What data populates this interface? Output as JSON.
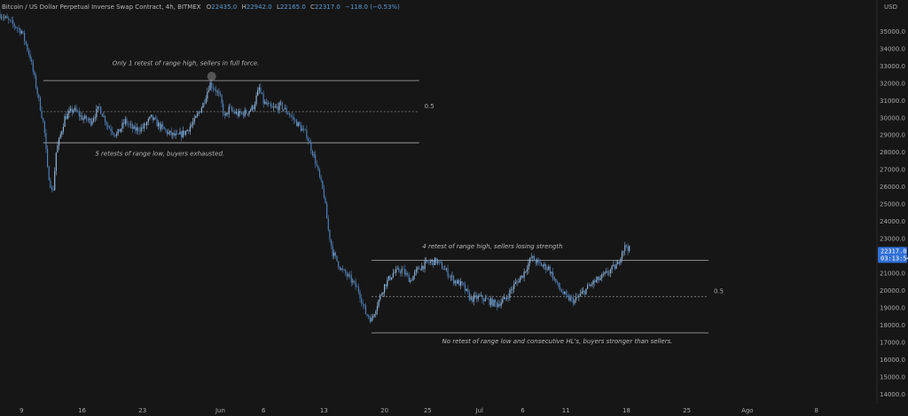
{
  "header": {
    "symbol": "Bitcoin / US Dollar Perpetual Inverse Swap Contract, 4h, BITMEX",
    "o_label": "O",
    "o_value": "22435.0",
    "h_label": "H",
    "h_value": "22942.0",
    "l_label": "L",
    "l_value": "22165.0",
    "c_label": "C",
    "c_value": "22317.0",
    "change": "−118.0 (−0.53%)"
  },
  "price_badge": {
    "price": "22317.0",
    "countdown": "03:13:54",
    "color": "#2f6fd6"
  },
  "colors": {
    "background": "#161616",
    "candle": "#8fb4d9",
    "candle_dark": "#4f7fb8",
    "level_line": "#9a9a9a",
    "text": "#b8b8b8"
  },
  "chart_data": {
    "type": "candlestick",
    "currency": "USD",
    "y_ticks": [
      "35000.0",
      "34000.0",
      "33000.0",
      "32000.0",
      "31000.0",
      "30000.0",
      "29000.0",
      "28000.0",
      "27000.0",
      "26000.0",
      "25000.0",
      "24000.0",
      "23000.0",
      "22000.0",
      "21000.0",
      "20000.0",
      "19000.0",
      "18000.0",
      "17000.0",
      "16000.0",
      "15000.0",
      "14000.0"
    ],
    "ylim": [
      13450,
      36100
    ],
    "x_ticks": [
      "9",
      "16",
      "23",
      "Jun",
      "6",
      "13",
      "20",
      "25",
      "Jul",
      "6",
      "11",
      "18",
      "25",
      "Ago",
      "8"
    ],
    "x_tick_days": [
      9,
      16,
      23,
      32,
      37,
      44,
      51,
      56,
      62,
      67,
      72,
      79,
      86,
      93,
      101
    ],
    "x_range_days": [
      6.5,
      108
    ],
    "price_path": [
      [
        6.5,
        36000
      ],
      [
        9,
        35000
      ],
      [
        10,
        33500
      ],
      [
        11,
        31000
      ],
      [
        11.6,
        29500
      ],
      [
        12,
        27000
      ],
      [
        12.6,
        25500
      ],
      [
        13,
        28000
      ],
      [
        14,
        30000
      ],
      [
        15,
        30500
      ],
      [
        16,
        30000
      ],
      [
        17,
        29800
      ],
      [
        18,
        30600
      ],
      [
        19,
        29500
      ],
      [
        20,
        29000
      ],
      [
        21,
        29800
      ],
      [
        22,
        29300
      ],
      [
        23,
        29400
      ],
      [
        24,
        30000
      ],
      [
        25,
        29500
      ],
      [
        26,
        29100
      ],
      [
        27,
        28900
      ],
      [
        28,
        29200
      ],
      [
        29,
        29800
      ],
      [
        30,
        30800
      ],
      [
        30.8,
        32000
      ],
      [
        31.5,
        31600
      ],
      [
        32,
        31100
      ],
      [
        32.5,
        30000
      ],
      [
        33,
        30500
      ],
      [
        34,
        30200
      ],
      [
        35,
        30300
      ],
      [
        35.8,
        30600
      ],
      [
        36.5,
        31700
      ],
      [
        37,
        30900
      ],
      [
        38,
        30500
      ],
      [
        39,
        30700
      ],
      [
        40,
        30200
      ],
      [
        41,
        29600
      ],
      [
        42,
        29000
      ],
      [
        43,
        27500
      ],
      [
        44,
        25500
      ],
      [
        44.5,
        23500
      ],
      [
        45,
        22200
      ],
      [
        46,
        21200
      ],
      [
        47,
        20700
      ],
      [
        48,
        20000
      ],
      [
        48.8,
        18700
      ],
      [
        49.5,
        18300
      ],
      [
        50,
        19000
      ],
      [
        51,
        20300
      ],
      [
        52,
        21000
      ],
      [
        53,
        21200
      ],
      [
        54,
        20600
      ],
      [
        55,
        21300
      ],
      [
        56,
        21600
      ],
      [
        57,
        21700
      ],
      [
        58,
        21200
      ],
      [
        59,
        20600
      ],
      [
        60,
        20300
      ],
      [
        61,
        19500
      ],
      [
        62,
        19600
      ],
      [
        63,
        19400
      ],
      [
        64,
        19200
      ],
      [
        65,
        19500
      ],
      [
        66,
        20300
      ],
      [
        67,
        20900
      ],
      [
        68,
        21900
      ],
      [
        69,
        21500
      ],
      [
        70,
        21300
      ],
      [
        71,
        20300
      ],
      [
        72,
        19600
      ],
      [
        73,
        19400
      ],
      [
        74,
        19900
      ],
      [
        75,
        20400
      ],
      [
        76,
        20700
      ],
      [
        77,
        21100
      ],
      [
        78,
        21500
      ],
      [
        78.5,
        22300
      ],
      [
        79,
        22600
      ],
      [
        79.4,
        22317
      ]
    ],
    "levels": [
      {
        "name": "range-1-high",
        "value": 32150,
        "from_day": 11.5,
        "to_day": 55
      },
      {
        "name": "range-1-mid",
        "value": 30350,
        "from_day": 11.5,
        "to_day": 55,
        "label": "0.5"
      },
      {
        "name": "range-1-low",
        "value": 28550,
        "from_day": 11.5,
        "to_day": 55
      },
      {
        "name": "range-2-high",
        "value": 21750,
        "from_day": 49.5,
        "to_day": 88.5
      },
      {
        "name": "range-2-mid",
        "value": 19650,
        "from_day": 49.5,
        "to_day": 88.5,
        "label": "0.5"
      },
      {
        "name": "range-2-low",
        "value": 17550,
        "from_day": 49.5,
        "to_day": 88.5
      }
    ],
    "marker": {
      "day": 31,
      "value": 32400
    },
    "annotations": [
      {
        "text": "Only 1 retest of range high, sellers in full force.",
        "day": 28,
        "value": 33050
      },
      {
        "text": "5 retests of range low, buyers exhausted.",
        "day": 25,
        "value": 27800
      },
      {
        "text": "4 retest of range high, sellers losing strength",
        "day": 63.5,
        "value": 22450
      },
      {
        "text": "No retest of range low and consecutive HL's, buyers stronger than sellers.",
        "day": 71,
        "value": 16950
      }
    ]
  }
}
